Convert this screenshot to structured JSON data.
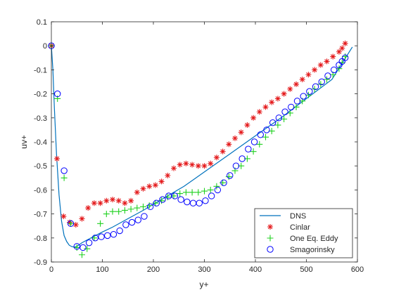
{
  "chart_data": {
    "type": "scatter",
    "xlabel": "y+",
    "ylabel": "uv+",
    "xlim": [
      0,
      600
    ],
    "ylim": [
      -0.9,
      0.1
    ],
    "xticks": [
      0,
      100,
      200,
      300,
      400,
      500,
      600
    ],
    "yticks": [
      0.1,
      0,
      -0.1,
      -0.2,
      -0.3,
      -0.4,
      -0.5,
      -0.6,
      -0.7,
      -0.8,
      -0.9
    ],
    "legend_position": "bottom-right",
    "grid": false,
    "series": [
      {
        "name": "DNS",
        "style": "line",
        "color": "#0072bd",
        "x": [
          0,
          3,
          6,
          10,
          15,
          20,
          25,
          30,
          35,
          40,
          45,
          50,
          60,
          80,
          100,
          120,
          150,
          180,
          200,
          220,
          240,
          260,
          300,
          350,
          400,
          450,
          500,
          550,
          590
        ],
        "y": [
          0,
          -0.1,
          -0.26,
          -0.45,
          -0.62,
          -0.73,
          -0.79,
          -0.815,
          -0.83,
          -0.836,
          -0.838,
          -0.835,
          -0.82,
          -0.797,
          -0.775,
          -0.755,
          -0.72,
          -0.685,
          -0.66,
          -0.635,
          -0.61,
          -0.585,
          -0.525,
          -0.45,
          -0.375,
          -0.3,
          -0.22,
          -0.14,
          -0.005
        ]
      },
      {
        "name": "Cinlar",
        "style": "asterisk",
        "color": "#e41a1c",
        "x": [
          0,
          11,
          24,
          36,
          48,
          60,
          72,
          84,
          96,
          108,
          120,
          132,
          144,
          156,
          168,
          180,
          192,
          204,
          216,
          228,
          240,
          252,
          264,
          276,
          288,
          300,
          312,
          324,
          336,
          348,
          360,
          372,
          384,
          396,
          408,
          420,
          432,
          444,
          456,
          468,
          480,
          492,
          504,
          516,
          528,
          540,
          552,
          564,
          570,
          576
        ],
        "y": [
          0,
          -0.47,
          -0.71,
          -0.735,
          -0.745,
          -0.72,
          -0.675,
          -0.655,
          -0.655,
          -0.645,
          -0.64,
          -0.645,
          -0.655,
          -0.645,
          -0.61,
          -0.595,
          -0.585,
          -0.58,
          -0.565,
          -0.54,
          -0.51,
          -0.495,
          -0.49,
          -0.495,
          -0.5,
          -0.5,
          -0.49,
          -0.465,
          -0.44,
          -0.41,
          -0.385,
          -0.36,
          -0.33,
          -0.3,
          -0.275,
          -0.255,
          -0.235,
          -0.22,
          -0.2,
          -0.18,
          -0.16,
          -0.14,
          -0.12,
          -0.1,
          -0.08,
          -0.065,
          -0.045,
          -0.025,
          -0.01,
          0.01
        ]
      },
      {
        "name": "One Eq. Eddy",
        "style": "plus",
        "color": "#1fd11f",
        "x": [
          0,
          12,
          25,
          38,
          50,
          60,
          70,
          84,
          96,
          108,
          120,
          132,
          144,
          156,
          168,
          180,
          192,
          204,
          216,
          228,
          240,
          252,
          264,
          276,
          288,
          300,
          312,
          324,
          336,
          348,
          360,
          372,
          384,
          396,
          408,
          420,
          432,
          444,
          456,
          468,
          480,
          492,
          504,
          516,
          528,
          540,
          552,
          564,
          570,
          576
        ],
        "y": [
          0,
          -0.22,
          -0.55,
          -0.74,
          -0.84,
          -0.87,
          -0.845,
          -0.8,
          -0.74,
          -0.7,
          -0.69,
          -0.69,
          -0.685,
          -0.68,
          -0.675,
          -0.67,
          -0.665,
          -0.655,
          -0.645,
          -0.63,
          -0.625,
          -0.615,
          -0.61,
          -0.61,
          -0.61,
          -0.605,
          -0.6,
          -0.585,
          -0.57,
          -0.545,
          -0.52,
          -0.5,
          -0.47,
          -0.44,
          -0.41,
          -0.38,
          -0.355,
          -0.33,
          -0.305,
          -0.28,
          -0.255,
          -0.23,
          -0.205,
          -0.18,
          -0.16,
          -0.14,
          -0.12,
          -0.095,
          -0.07,
          -0.045
        ]
      },
      {
        "name": "Smagorinsky",
        "style": "circle",
        "color": "#0000ff",
        "x": [
          0,
          12,
          25,
          38,
          50,
          62,
          74,
          86,
          98,
          110,
          122,
          134,
          146,
          158,
          170,
          182,
          194,
          206,
          218,
          230,
          242,
          254,
          266,
          278,
          290,
          302,
          314,
          326,
          338,
          350,
          362,
          374,
          386,
          398,
          410,
          422,
          434,
          446,
          458,
          470,
          482,
          494,
          506,
          518,
          530,
          542,
          554,
          564,
          570,
          576
        ],
        "y": [
          0,
          -0.2,
          -0.52,
          -0.74,
          -0.835,
          -0.84,
          -0.82,
          -0.8,
          -0.795,
          -0.79,
          -0.785,
          -0.77,
          -0.745,
          -0.735,
          -0.725,
          -0.71,
          -0.67,
          -0.655,
          -0.64,
          -0.625,
          -0.625,
          -0.64,
          -0.65,
          -0.655,
          -0.655,
          -0.645,
          -0.625,
          -0.6,
          -0.57,
          -0.54,
          -0.5,
          -0.47,
          -0.43,
          -0.4,
          -0.37,
          -0.35,
          -0.32,
          -0.3,
          -0.275,
          -0.255,
          -0.23,
          -0.21,
          -0.19,
          -0.17,
          -0.15,
          -0.125,
          -0.1,
          -0.08,
          -0.065,
          -0.05
        ]
      }
    ]
  }
}
